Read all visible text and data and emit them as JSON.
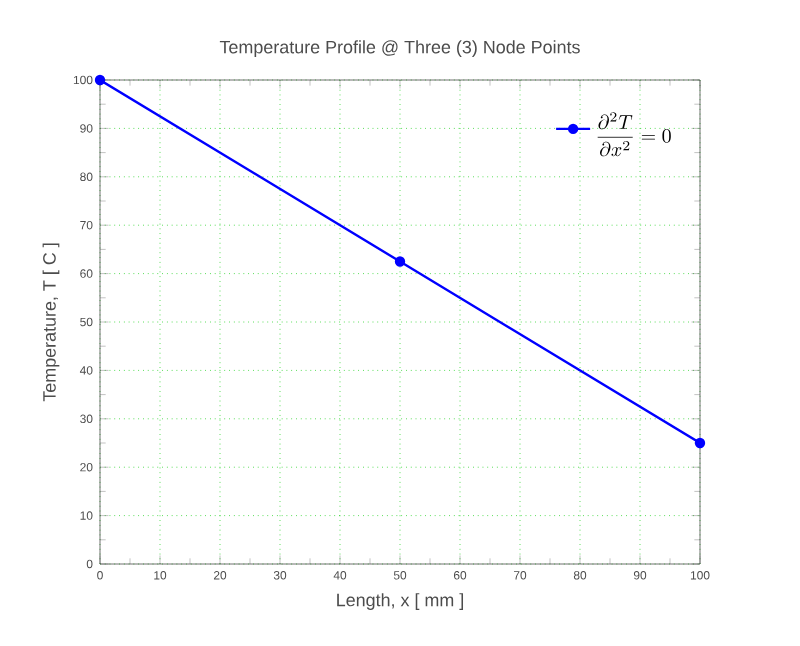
{
  "chart_data": {
    "type": "line",
    "title": "Temperature Profile @ Three (3) Node Points",
    "xlabel": "Length, x [ mm ]",
    "ylabel": "Temperature, T [ C ]",
    "x": [
      0,
      50,
      100
    ],
    "series": [
      {
        "name": "\\frac{\\partial^2 T}{\\partial x^2} = 0",
        "color": "#0000ff",
        "values": [
          100,
          62.5,
          25
        ]
      }
    ],
    "xlim": [
      0,
      100
    ],
    "ylim": [
      0,
      100
    ],
    "xticks": [
      0,
      10,
      20,
      30,
      40,
      50,
      60,
      70,
      80,
      90,
      100
    ],
    "yticks": [
      0,
      10,
      20,
      30,
      40,
      50,
      60,
      70,
      80,
      90,
      100
    ],
    "grid": true,
    "legend": "top right",
    "marker": "circle",
    "line_style": "solid"
  }
}
